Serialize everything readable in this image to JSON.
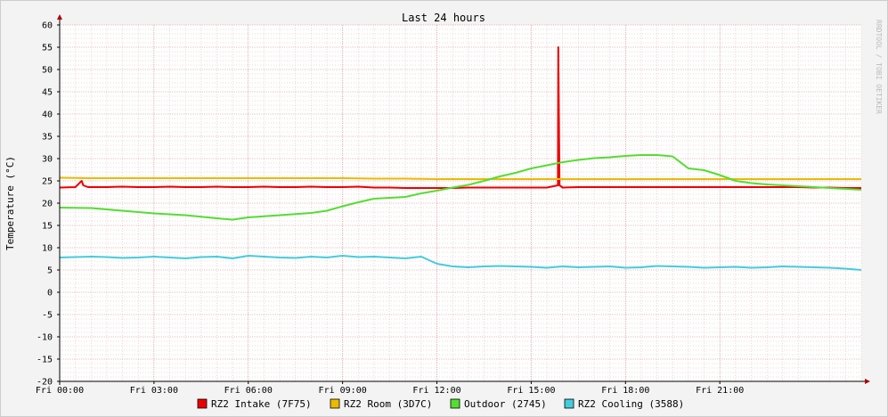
{
  "chart_data": {
    "type": "line",
    "title": "Last 24 hours",
    "ylabel": "Temperature (°C)",
    "watermark": "RRDTOOL / TOBI OETIKER",
    "ylim": [
      -20,
      60
    ],
    "y_ticks": [
      -20,
      -15,
      -10,
      -5,
      0,
      5,
      10,
      15,
      20,
      25,
      30,
      35,
      40,
      45,
      50,
      55,
      60
    ],
    "xlim": [
      0,
      25.5
    ],
    "x_ticks": [
      {
        "h": 0,
        "label": "Fri 00:00"
      },
      {
        "h": 3,
        "label": "Fri 03:00"
      },
      {
        "h": 6,
        "label": "Fri 06:00"
      },
      {
        "h": 9,
        "label": "Fri 09:00"
      },
      {
        "h": 12,
        "label": "Fri 12:00"
      },
      {
        "h": 15,
        "label": "Fri 15:00"
      },
      {
        "h": 18,
        "label": "Fri 18:00"
      },
      {
        "h": 21,
        "label": "Fri 21:00"
      }
    ],
    "grid": true,
    "legend_position": "bottom",
    "colors": {
      "background": "#f3f3f3",
      "canvas": "#ffffff",
      "minor_grid": "#e0b0b0",
      "major_grid": "#d08080",
      "axis": "#000000",
      "arrow": "#aa0000",
      "frame": "#cccccc"
    },
    "series": [
      {
        "name": "RZ2 Intake (7F75)",
        "color": "#ee0000",
        "x": [
          0.0,
          0.5,
          0.7,
          0.75,
          0.9,
          1.0,
          1.5,
          2.0,
          2.5,
          3.0,
          3.5,
          4.0,
          4.5,
          5.0,
          5.5,
          6.0,
          6.5,
          7.0,
          7.5,
          8.0,
          8.5,
          9.0,
          9.5,
          10.0,
          10.5,
          11.0,
          11.5,
          12.0,
          12.5,
          13.0,
          13.5,
          14.0,
          14.5,
          15.0,
          15.5,
          15.85,
          15.86,
          15.9,
          16.0,
          16.5,
          17.0,
          17.5,
          18.0,
          18.5,
          19.0,
          19.5,
          20.0,
          20.5,
          21.0,
          21.5,
          22.0,
          22.5,
          23.0,
          23.5,
          24.0,
          24.5,
          25.0,
          25.5
        ],
        "y": [
          23.5,
          23.6,
          25.0,
          24.0,
          23.6,
          23.6,
          23.6,
          23.7,
          23.6,
          23.6,
          23.7,
          23.6,
          23.6,
          23.7,
          23.6,
          23.6,
          23.7,
          23.6,
          23.6,
          23.7,
          23.6,
          23.6,
          23.7,
          23.5,
          23.5,
          23.4,
          23.4,
          23.4,
          23.4,
          23.5,
          23.5,
          23.5,
          23.5,
          23.5,
          23.5,
          24.0,
          55.0,
          24.0,
          23.5,
          23.6,
          23.6,
          23.6,
          23.6,
          23.6,
          23.6,
          23.6,
          23.6,
          23.6,
          23.6,
          23.6,
          23.6,
          23.6,
          23.6,
          23.6,
          23.5,
          23.5,
          23.4,
          23.4
        ]
      },
      {
        "name": "RZ2 Room (3D7C)",
        "color": "#eabb00",
        "x": [
          0.0,
          1.0,
          2.0,
          3.0,
          4.0,
          5.0,
          6.0,
          7.0,
          8.0,
          9.0,
          10.0,
          11.0,
          12.0,
          13.0,
          14.0,
          15.0,
          16.0,
          17.0,
          18.0,
          19.0,
          20.0,
          21.0,
          22.0,
          23.0,
          24.0,
          25.0,
          25.5
        ],
        "y": [
          25.7,
          25.6,
          25.6,
          25.6,
          25.6,
          25.6,
          25.6,
          25.6,
          25.6,
          25.6,
          25.5,
          25.5,
          25.4,
          25.4,
          25.4,
          25.4,
          25.4,
          25.4,
          25.4,
          25.4,
          25.4,
          25.4,
          25.4,
          25.4,
          25.4,
          25.4,
          25.4
        ]
      },
      {
        "name": "Outdoor (2745)",
        "color": "#55dd33",
        "x": [
          0.0,
          1.0,
          2.0,
          3.0,
          4.0,
          5.0,
          5.5,
          6.0,
          7.0,
          8.0,
          8.5,
          9.0,
          9.5,
          10.0,
          10.5,
          11.0,
          11.5,
          12.0,
          12.5,
          13.0,
          13.5,
          14.0,
          14.5,
          15.0,
          15.5,
          16.0,
          16.5,
          17.0,
          17.5,
          18.0,
          18.5,
          19.0,
          19.5,
          20.0,
          20.5,
          21.0,
          21.5,
          22.0,
          22.5,
          23.0,
          23.5,
          24.0,
          24.5,
          25.0,
          25.5
        ],
        "y": [
          19.0,
          18.9,
          18.3,
          17.7,
          17.3,
          16.6,
          16.3,
          16.8,
          17.3,
          17.8,
          18.3,
          19.3,
          20.2,
          21.0,
          21.2,
          21.4,
          22.2,
          22.8,
          23.5,
          24.1,
          25.0,
          26.0,
          26.8,
          27.8,
          28.5,
          29.2,
          29.7,
          30.1,
          30.3,
          30.6,
          30.8,
          30.8,
          30.5,
          27.8,
          27.4,
          26.3,
          25.0,
          24.5,
          24.2,
          24.0,
          23.8,
          23.6,
          23.4,
          23.2,
          23.0
        ]
      },
      {
        "name": "RZ2 Cooling (3588)",
        "color": "#44ccdd",
        "x": [
          0.0,
          0.5,
          1.0,
          1.5,
          2.0,
          2.5,
          3.0,
          3.5,
          4.0,
          4.5,
          5.0,
          5.5,
          6.0,
          6.5,
          7.0,
          7.5,
          8.0,
          8.5,
          9.0,
          9.5,
          10.0,
          10.5,
          11.0,
          11.5,
          12.0,
          12.5,
          13.0,
          13.5,
          14.0,
          14.5,
          15.0,
          15.5,
          16.0,
          16.5,
          17.0,
          17.5,
          18.0,
          18.5,
          19.0,
          19.5,
          20.0,
          20.5,
          21.0,
          21.5,
          22.0,
          22.5,
          23.0,
          23.5,
          24.0,
          24.5,
          25.0,
          25.5
        ],
        "y": [
          7.8,
          7.9,
          8.0,
          7.9,
          7.7,
          7.8,
          8.0,
          7.8,
          7.6,
          7.9,
          8.0,
          7.6,
          8.2,
          8.0,
          7.8,
          7.7,
          8.0,
          7.8,
          8.2,
          7.9,
          8.0,
          7.8,
          7.6,
          8.0,
          6.4,
          5.8,
          5.6,
          5.8,
          5.9,
          5.8,
          5.7,
          5.5,
          5.8,
          5.6,
          5.7,
          5.8,
          5.5,
          5.6,
          5.9,
          5.8,
          5.7,
          5.5,
          5.6,
          5.7,
          5.5,
          5.6,
          5.8,
          5.7,
          5.6,
          5.5,
          5.3,
          5.0
        ]
      }
    ]
  }
}
